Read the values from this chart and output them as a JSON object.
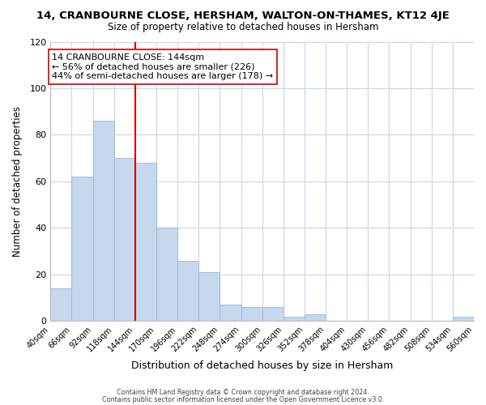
{
  "title": "14, CRANBOURNE CLOSE, HERSHAM, WALTON-ON-THAMES, KT12 4JE",
  "subtitle": "Size of property relative to detached houses in Hersham",
  "xlabel": "Distribution of detached houses by size in Hersham",
  "ylabel": "Number of detached properties",
  "bar_values": [
    14,
    62,
    86,
    70,
    68,
    40,
    26,
    21,
    7,
    6,
    6,
    2,
    3,
    0,
    0,
    0,
    0,
    0,
    0,
    2
  ],
  "bar_labels": [
    "40sqm",
    "66sqm",
    "92sqm",
    "118sqm",
    "144sqm",
    "170sqm",
    "196sqm",
    "222sqm",
    "248sqm",
    "274sqm",
    "300sqm",
    "326sqm",
    "352sqm",
    "378sqm",
    "404sqm",
    "430sqm",
    "456sqm",
    "482sqm",
    "508sqm",
    "534sqm",
    "560sqm"
  ],
  "bar_color": "#c5d8ee",
  "bar_edge_color": "#9ab8d8",
  "vline_x": 4,
  "vline_color": "#cc0000",
  "annotation_line1": "14 CRANBOURNE CLOSE: 144sqm",
  "annotation_line2": "← 56% of detached houses are smaller (226)",
  "annotation_line3": "44% of semi-detached houses are larger (178) →",
  "annotation_box_color": "#ffffff",
  "annotation_box_edge": "#cc0000",
  "ylim": [
    0,
    120
  ],
  "yticks": [
    0,
    20,
    40,
    60,
    80,
    100,
    120
  ],
  "footer1": "Contains HM Land Registry data © Crown copyright and database right 2024.",
  "footer2": "Contains public sector information licensed under the Open Government Licence v3.0.",
  "background_color": "#ffffff",
  "grid_color": "#c8d8ea"
}
